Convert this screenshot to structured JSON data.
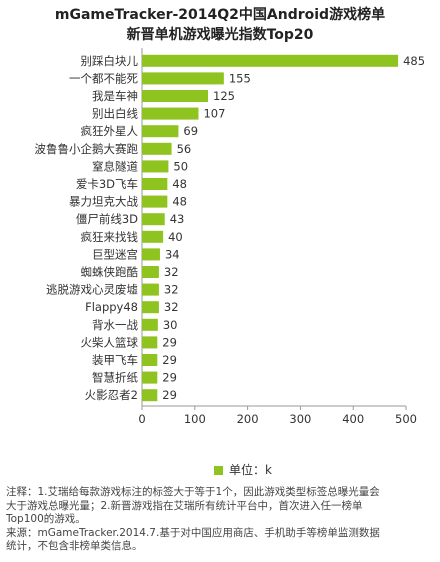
{
  "header": {
    "title_line1": "mGameTracker-2014Q2中国Android游戏榜单",
    "title_line2": "新晋单机游戏曝光指数Top20"
  },
  "legend": {
    "label": "单位：k"
  },
  "notes": {
    "line1": "注释：1.艾瑞给每款游戏标注的标签大于等于1个，因此游戏类型标签总曝光量会",
    "line2": "大于游戏总曝光量；2.新晋游戏指在艾瑞所有统计平台中，首次进入任一榜单",
    "line3": "Top100的游戏。",
    "line4": "来源：mGameTracker.2014.7.基于对中国应用商店、手机助手等榜单监测数据",
    "line5": "统计，不包含非榜单类信息。"
  },
  "colors": {
    "bar": "#8fc31f",
    "axis": "#9a9a9a",
    "text": "#333333"
  },
  "chart_data": {
    "type": "bar",
    "orientation": "horizontal",
    "categories": [
      "别踩白块儿",
      "一个都不能死",
      "我是车神",
      "别出白线",
      "疯狂外星人",
      "波鲁鲁小企鹅大赛跑",
      "窒息隧道",
      "爱卡3D飞车",
      "暴力坦克大战",
      "僵尸前线3D",
      "疯狂来找钱",
      "巨型迷宫",
      "蜘蛛侠跑酷",
      "逃脱游戏心灵废墟",
      "Flappy48",
      "背水一战",
      "火柴人篮球",
      "装甲飞车",
      "智慧折纸",
      "火影忍者2"
    ],
    "values": [
      485,
      155,
      125,
      107,
      69,
      56,
      50,
      48,
      48,
      43,
      40,
      34,
      32,
      32,
      32,
      30,
      29,
      29,
      29,
      29
    ],
    "xlim": [
      0,
      500
    ],
    "xticks": [
      0,
      100,
      200,
      300,
      400,
      500
    ],
    "grid": false,
    "legend_position": "bottom"
  }
}
